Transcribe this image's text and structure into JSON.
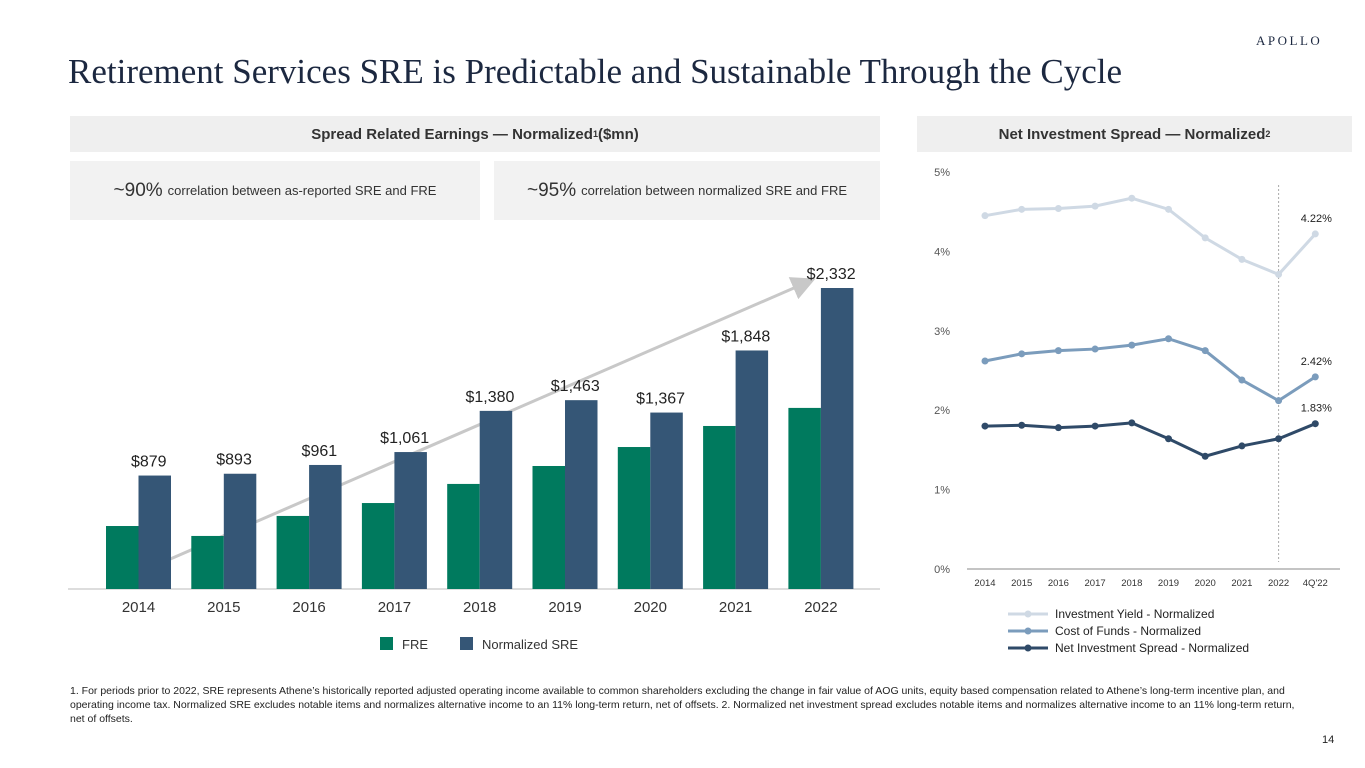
{
  "logo": "APOLLO",
  "title": "Retirement Services SRE is Predictable and Sustainable Through the Cycle",
  "left_header": {
    "text": "Spread Related Earnings — Normalized",
    "sup": "1",
    "suffix": " ($mn)"
  },
  "right_header": {
    "text": "Net Investment Spread — Normalized",
    "sup": "2"
  },
  "correlations": [
    {
      "big": "~90%",
      "text": "correlation between as-reported SRE and FRE"
    },
    {
      "big": "~95%",
      "text": "correlation between normalized SRE and FRE"
    }
  ],
  "chart_data": [
    {
      "type": "bar",
      "categories": [
        "2014",
        "2015",
        "2016",
        "2017",
        "2018",
        "2019",
        "2020",
        "2021",
        "2022"
      ],
      "series": [
        {
          "name": "FRE",
          "color": "#007a5e",
          "values": [
            488,
            411,
            566,
            666,
            814,
            953,
            1100,
            1263,
            1403
          ]
        },
        {
          "name": "Normalized SRE",
          "color": "#355676",
          "values": [
            879,
            893,
            961,
            1061,
            1380,
            1463,
            1367,
            1848,
            2332
          ],
          "labels": [
            "$879",
            "$893",
            "$961",
            "$1,061",
            "$1,380",
            "$1,463",
            "$1,367",
            "$1,848",
            "$2,332"
          ]
        }
      ],
      "trend_arrow": true,
      "legend": "bottom"
    },
    {
      "type": "line",
      "categories": [
        "2014",
        "2015",
        "2016",
        "2017",
        "2018",
        "2019",
        "2020",
        "2021",
        "2022",
        "4Q'22"
      ],
      "yticks": [
        "0%",
        "1%",
        "2%",
        "3%",
        "4%",
        "5%"
      ],
      "ylim": [
        0,
        5
      ],
      "series": [
        {
          "name": "Investment Yield - Normalized",
          "color": "#cfd9e4",
          "values": [
            4.45,
            4.53,
            4.54,
            4.57,
            4.67,
            4.53,
            4.17,
            3.9,
            3.71,
            4.22
          ],
          "end_label": "4.22%"
        },
        {
          "name": "Cost of Funds - Normalized",
          "color": "#7b9cbc",
          "values": [
            2.62,
            2.71,
            2.75,
            2.77,
            2.82,
            2.9,
            2.75,
            2.38,
            2.12,
            2.42
          ],
          "end_label": "2.42%"
        },
        {
          "name": "Net Investment Spread - Normalized",
          "color": "#2f4a68",
          "values": [
            1.8,
            1.81,
            1.78,
            1.8,
            1.84,
            1.64,
            1.42,
            1.55,
            1.64,
            1.83
          ],
          "end_label": "1.83%"
        }
      ],
      "legend": "bottom"
    }
  ],
  "footnote": "1. For periods prior to 2022, SRE represents Athene’s historically reported adjusted operating income available to common shareholders excluding the change in fair value of AOG units, equity based compensation related to Athene’s long-term incentive plan, and operating income tax. Normalized SRE excludes notable items and normalizes alternative income to an 11% long-term return, net of offsets. 2. Normalized net investment spread excludes notable items and normalizes alternative income to an 11% long-term return, net of offsets.",
  "page_number": "14"
}
